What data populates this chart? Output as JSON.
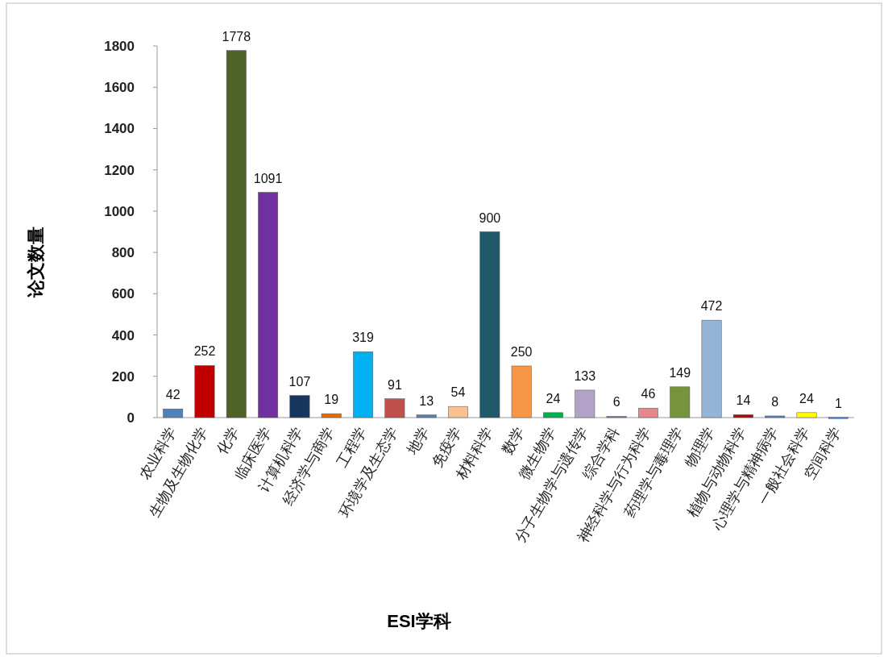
{
  "chart_data": {
    "type": "bar",
    "xlabel": "ESI学科",
    "ylabel": "论文数量",
    "categories": [
      "农业科学",
      "生物及生物化学",
      "化学",
      "临床医学",
      "计算机科学",
      "经济学与商学",
      "工程学",
      "环境学及生态学",
      "地学",
      "免疫学",
      "材料科学",
      "数学",
      "微生物学",
      "分子生物学与遗传学",
      "综合学科",
      "神经科学与行为科学",
      "药理学与毒理学",
      "物理学",
      "植物与动物科学",
      "心理学与精神病学",
      "一般社会科学",
      "空间科学"
    ],
    "values": [
      42,
      252,
      1778,
      1091,
      107,
      19,
      319,
      91,
      13,
      54,
      900,
      250,
      24,
      133,
      6,
      46,
      149,
      472,
      14,
      8,
      24,
      1
    ],
    "colors": [
      "#4f81bd",
      "#c00000",
      "#4f6228",
      "#7030a0",
      "#17375e",
      "#e36c09",
      "#00b0f0",
      "#c0504d",
      "#4f81bd",
      "#fac090",
      "#215968",
      "#f79646",
      "#00b050",
      "#b3a2c7",
      "#4f81bd",
      "#e6878a",
      "#77933c",
      "#95b3d7",
      "#c00000",
      "#4f81bd",
      "#ffff00",
      "#4f81bd"
    ],
    "ylim": [
      0,
      1800
    ],
    "yticks": [
      0,
      200,
      400,
      600,
      800,
      1000,
      1200,
      1400,
      1600,
      1800
    ],
    "data_labels": true,
    "grid": false
  }
}
